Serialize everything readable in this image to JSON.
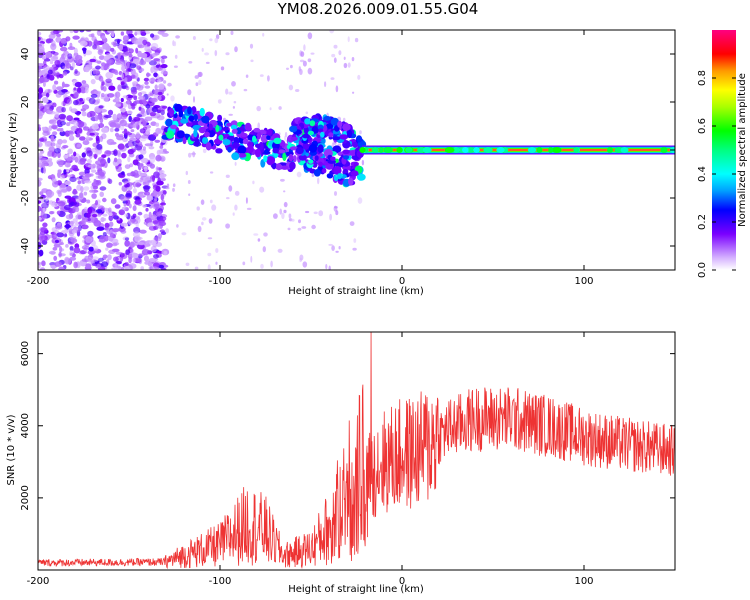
{
  "title": "YM08.2026.009.01.55.G04",
  "chart_data": [
    {
      "type": "heatmap",
      "name": "spectrogram",
      "xlabel": "Height of straight line (km)",
      "ylabel": "Frequency (Hz)",
      "xlim": [
        -200,
        150
      ],
      "ylim": [
        -50,
        50
      ],
      "xticks": [
        -200,
        -100,
        0,
        100
      ],
      "yticks": [
        -40,
        -20,
        0,
        20,
        40
      ],
      "colorbar": {
        "label": "Normalized spectral amplitude",
        "range": [
          0.0,
          1.0
        ],
        "ticks": [
          0.0,
          0.2,
          0.4,
          0.6,
          0.8
        ]
      },
      "features": {
        "noise_region_x": [
          -200,
          -130
        ],
        "noise_amplitude": 0.12,
        "drifting_band": [
          {
            "x": -130,
            "y": 12
          },
          {
            "x": -110,
            "y": 9
          },
          {
            "x": -90,
            "y": 4
          },
          {
            "x": -70,
            "y": 0
          },
          {
            "x": -50,
            "y": -2
          },
          {
            "x": -40,
            "y": -4
          },
          {
            "x": -30,
            "y": -8
          },
          {
            "x": -22,
            "y": -5
          }
        ],
        "secondary_band": [
          {
            "x": -60,
            "y": 8
          },
          {
            "x": -45,
            "y": 10
          },
          {
            "x": -35,
            "y": 8
          },
          {
            "x": -25,
            "y": 4
          },
          {
            "x": -22,
            "y": 0
          }
        ],
        "steady_line": {
          "x_start": -22,
          "x_end": 150,
          "frequency": 0,
          "amplitude": 1.0
        }
      }
    },
    {
      "type": "line",
      "name": "snr",
      "xlabel": "Height of straight line (km)",
      "ylabel": "SNR (10 * v/v)",
      "xlim": [
        -200,
        150
      ],
      "ylim": [
        0,
        6600
      ],
      "xticks": [
        -200,
        -100,
        0,
        100
      ],
      "yticks": [
        2000,
        4000,
        6000
      ],
      "color": "#ee3333",
      "envelope": [
        {
          "x": -200,
          "y": 200
        },
        {
          "x": -130,
          "y": 220
        },
        {
          "x": -120,
          "y": 400
        },
        {
          "x": -100,
          "y": 700
        },
        {
          "x": -85,
          "y": 1300
        },
        {
          "x": -75,
          "y": 1100
        },
        {
          "x": -65,
          "y": 400
        },
        {
          "x": -50,
          "y": 600
        },
        {
          "x": -40,
          "y": 1200
        },
        {
          "x": -30,
          "y": 2200
        },
        {
          "x": -20,
          "y": 2800
        },
        {
          "x": -10,
          "y": 3000
        },
        {
          "x": 0,
          "y": 3200
        },
        {
          "x": 10,
          "y": 3300
        },
        {
          "x": 25,
          "y": 3900
        },
        {
          "x": 40,
          "y": 4200
        },
        {
          "x": 60,
          "y": 4200
        },
        {
          "x": 80,
          "y": 4000
        },
        {
          "x": 100,
          "y": 3700
        },
        {
          "x": 120,
          "y": 3500
        },
        {
          "x": 150,
          "y": 3300
        }
      ],
      "peak": {
        "x": -17,
        "y": 6600
      }
    }
  ]
}
